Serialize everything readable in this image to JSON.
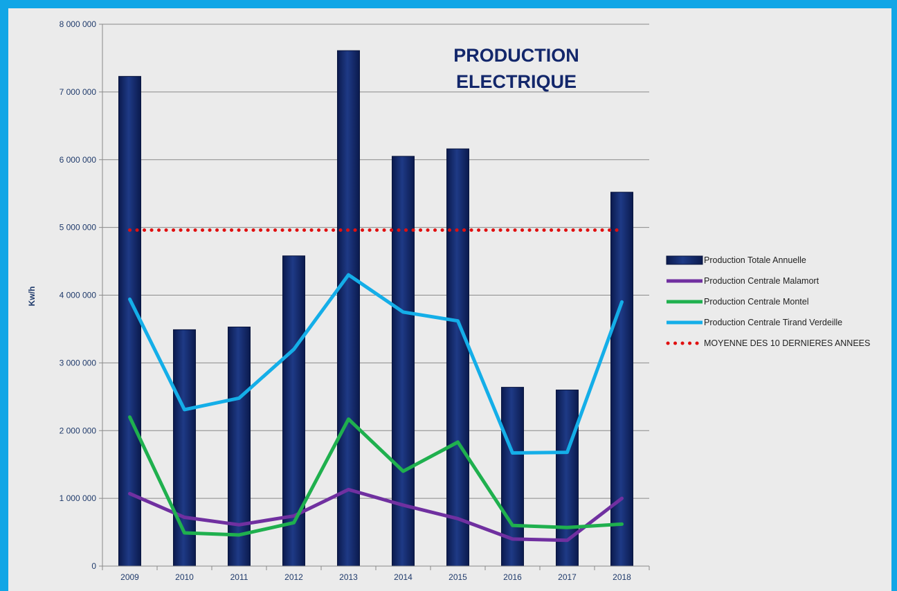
{
  "chart_data": {
    "type": "bar",
    "title_lines": [
      "PRODUCTION",
      "ELECTRIQUE"
    ],
    "ylabel": "Kw/h",
    "xlabel": "",
    "ylim": [
      0,
      8000000
    ],
    "y_ticks": [
      0,
      1000000,
      2000000,
      3000000,
      4000000,
      5000000,
      6000000,
      7000000,
      8000000
    ],
    "y_tick_labels": [
      "0",
      "1 000 000",
      "2 000 000",
      "3 000 000",
      "4 000 000",
      "5 000 000",
      "6 000 000",
      "7 000 000",
      "8 000 000"
    ],
    "categories": [
      "2009",
      "2010",
      "2011",
      "2012",
      "2013",
      "2014",
      "2015",
      "2016",
      "2017",
      "2018"
    ],
    "grid": true,
    "legend_position": "right",
    "series": [
      {
        "name": "Production Totale Annuelle",
        "kind": "bar",
        "color": "#13276b",
        "values": [
          7230000,
          3490000,
          3530000,
          4580000,
          7610000,
          6050000,
          6160000,
          2640000,
          2600000,
          5520000
        ]
      },
      {
        "name": "Production Centrale Malamort",
        "kind": "line",
        "color": "#7030a0",
        "values": [
          1070000,
          720000,
          610000,
          740000,
          1130000,
          900000,
          700000,
          400000,
          380000,
          1000000
        ]
      },
      {
        "name": "Production Centrale Montel",
        "kind": "line",
        "color": "#1fb04e",
        "values": [
          2200000,
          490000,
          460000,
          640000,
          2170000,
          1400000,
          1830000,
          600000,
          570000,
          620000
        ]
      },
      {
        "name": "Production Centrale Tirand Verdeille",
        "kind": "line",
        "color": "#14aee8",
        "values": [
          3940000,
          2310000,
          2480000,
          3200000,
          4300000,
          3750000,
          3620000,
          1670000,
          1680000,
          3900000
        ]
      },
      {
        "name": "MOYENNE DES 10 DERNIERES ANNEES",
        "kind": "dotted-line",
        "color": "#e01010",
        "values": [
          4960000,
          4960000,
          4960000,
          4960000,
          4960000,
          4960000,
          4960000,
          4960000,
          4960000,
          4960000
        ]
      }
    ]
  }
}
